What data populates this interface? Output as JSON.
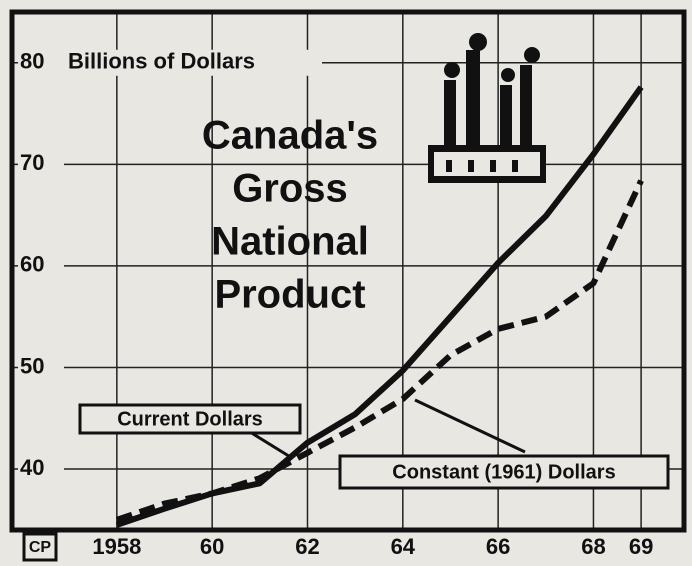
{
  "chart_data": {
    "type": "line",
    "title_lines": [
      "Canada's",
      "Gross",
      "National",
      "Product"
    ],
    "y_axis_label": "Billions of Dollars",
    "source_label": "CP",
    "x": [
      1958,
      1959,
      1960,
      1961,
      1962,
      1963,
      1964,
      1965,
      1966,
      1967,
      1968,
      1969
    ],
    "series": [
      {
        "name": "Current Dollars",
        "color": "#111111",
        "dash": false,
        "values": [
          34.5,
          36.1,
          37.6,
          38.6,
          42.6,
          45.4,
          49.7,
          55.0,
          60.3,
          64.9,
          71.0,
          77.6
        ]
      },
      {
        "name": "Constant (1961) Dollars",
        "color": "#111111",
        "dash": true,
        "values": [
          35.0,
          36.6,
          37.6,
          39.1,
          41.6,
          44.1,
          46.9,
          51.2,
          53.8,
          55.0,
          58.3,
          68.4
        ]
      }
    ],
    "xlim": [
      1955.8,
      1969.9
    ],
    "xticks": [
      {
        "value": 1958,
        "label": "1958"
      },
      {
        "value": 1960,
        "label": "60"
      },
      {
        "value": 1962,
        "label": "62"
      },
      {
        "value": 1964,
        "label": "64"
      },
      {
        "value": 1966,
        "label": "66"
      },
      {
        "value": 1968,
        "label": "68"
      },
      {
        "value": 1969,
        "label": "69"
      }
    ],
    "ylim": [
      34,
      85
    ],
    "yticks": [
      40,
      50,
      60,
      70,
      80
    ],
    "grid": true
  }
}
